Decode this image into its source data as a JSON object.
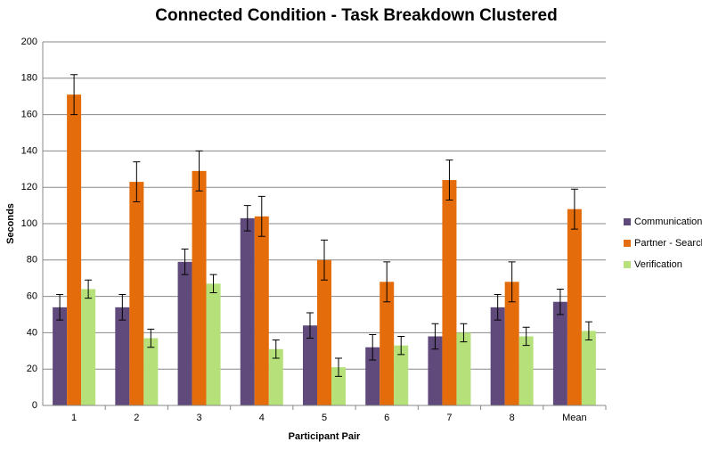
{
  "chart_data": {
    "type": "bar",
    "title": "Connected Condition - Task Breakdown Clustered",
    "x_label": "Participant Pair",
    "y_label": "Seconds",
    "categories": [
      "1",
      "2",
      "3",
      "4",
      "5",
      "6",
      "7",
      "8",
      "Mean"
    ],
    "series": [
      {
        "name": "Communication",
        "color": "#604a7b",
        "values": [
          54,
          54,
          79,
          103,
          44,
          32,
          38,
          54,
          57
        ],
        "errors": [
          7,
          7,
          7,
          7,
          7,
          7,
          7,
          7,
          7
        ]
      },
      {
        "name": "Partner - Search",
        "color": "#e46c0a",
        "values": [
          171,
          123,
          129,
          104,
          80,
          68,
          124,
          68,
          108
        ],
        "errors": [
          11,
          11,
          11,
          11,
          11,
          11,
          11,
          11,
          11
        ]
      },
      {
        "name": "Verification",
        "color": "#b5e07a",
        "values": [
          64,
          37,
          67,
          31,
          21,
          33,
          40,
          38,
          41
        ],
        "errors": [
          5,
          5,
          5,
          5,
          5,
          5,
          5,
          5,
          5
        ]
      }
    ],
    "ylim": [
      0,
      200
    ],
    "yticks": [
      0,
      20,
      40,
      60,
      80,
      100,
      120,
      140,
      160,
      180,
      200
    ],
    "grid": true,
    "legend": "right"
  }
}
